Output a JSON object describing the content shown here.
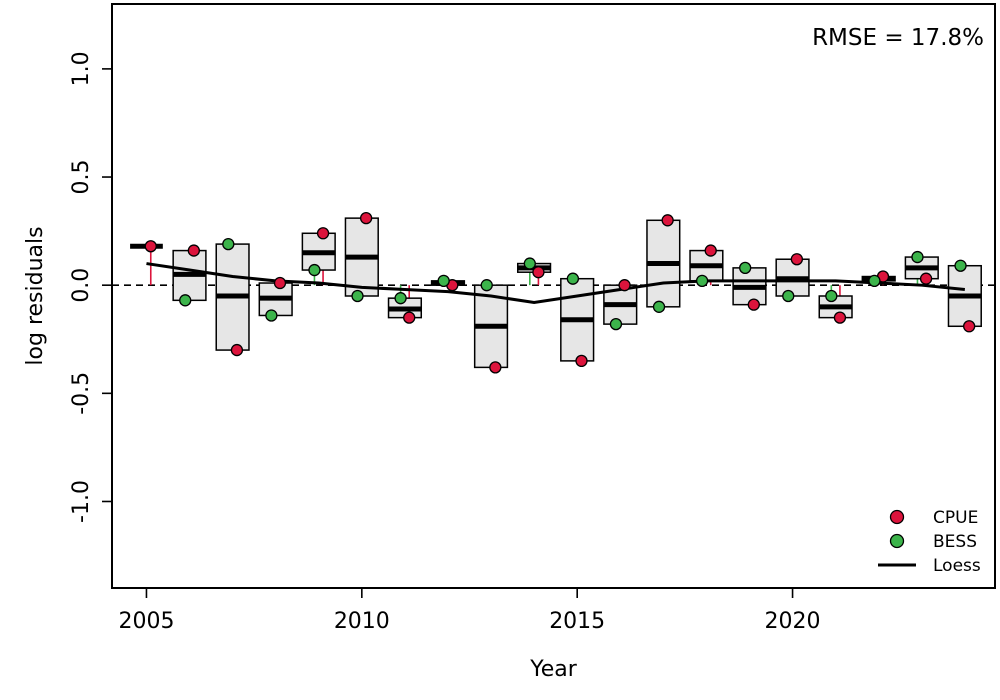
{
  "chart_data": {
    "type": "box-residual",
    "xlabel": "Year",
    "ylabel": "log residuals",
    "xlim": [
      2004.2,
      2024.7
    ],
    "ylim": [
      -1.4,
      1.3
    ],
    "x_ticks": [
      2005,
      2010,
      2015,
      2020
    ],
    "y_ticks": [
      -1.0,
      -0.5,
      0.0,
      0.5,
      1.0
    ],
    "y_tick_labels": [
      "-1.0",
      "-0.5",
      "0.0",
      "0.5",
      "1.0"
    ],
    "annotation": "RMSE = 17.8%",
    "reference_line": 0,
    "series": [
      {
        "name": "CPUE",
        "color": "#dc143c",
        "x": [
          2005,
          2006,
          2007,
          2008,
          2009,
          2010,
          2011,
          2012,
          2013,
          2014,
          2015,
          2016,
          2017,
          2018,
          2019,
          2020,
          2021,
          2022,
          2023,
          2024
        ],
        "values": [
          0.18,
          0.16,
          -0.3,
          0.01,
          0.24,
          0.31,
          -0.15,
          0.0,
          -0.38,
          0.06,
          -0.35,
          0.0,
          0.3,
          0.16,
          -0.09,
          0.12,
          -0.15,
          0.04,
          0.03,
          -0.19
        ]
      },
      {
        "name": "BESS",
        "color": "#3cb44b",
        "x": [
          2006,
          2007,
          2008,
          2009,
          2010,
          2011,
          2012,
          2013,
          2014,
          2015,
          2016,
          2017,
          2018,
          2019,
          2020,
          2021,
          2022,
          2023,
          2024
        ],
        "values": [
          -0.07,
          0.19,
          -0.14,
          0.07,
          -0.05,
          -0.06,
          0.02,
          0.0,
          0.1,
          0.03,
          -0.18,
          -0.1,
          0.02,
          0.08,
          -0.05,
          -0.05,
          0.02,
          0.13,
          0.09
        ]
      },
      {
        "name": "Loess",
        "color": "#000000",
        "x": [
          2005,
          2006,
          2007,
          2008,
          2009,
          2010,
          2011,
          2012,
          2013,
          2014,
          2015,
          2016,
          2017,
          2018,
          2019,
          2020,
          2021,
          2022,
          2023,
          2024
        ],
        "values": [
          0.1,
          0.07,
          0.04,
          0.02,
          0.01,
          -0.01,
          -0.02,
          -0.03,
          -0.05,
          -0.08,
          -0.05,
          -0.02,
          0.01,
          0.02,
          0.02,
          0.02,
          0.02,
          0.01,
          0.0,
          -0.02
        ]
      }
    ],
    "medians": {
      "x": [
        2005,
        2006,
        2007,
        2008,
        2009,
        2010,
        2011,
        2012,
        2013,
        2014,
        2015,
        2016,
        2017,
        2018,
        2019,
        2020,
        2021,
        2022,
        2023,
        2024
      ],
      "values": [
        0.18,
        0.05,
        -0.05,
        -0.06,
        0.15,
        0.13,
        -0.11,
        0.01,
        -0.19,
        0.08,
        -0.16,
        -0.09,
        0.1,
        0.09,
        -0.01,
        0.03,
        -0.1,
        0.03,
        0.08,
        -0.05
      ]
    },
    "legend": {
      "position": "bottom-right",
      "items": [
        {
          "label": "CPUE",
          "type": "point",
          "color": "#dc143c"
        },
        {
          "label": "BESS",
          "type": "point",
          "color": "#3cb44b"
        },
        {
          "label": "Loess",
          "type": "line",
          "color": "#000000"
        }
      ]
    }
  }
}
